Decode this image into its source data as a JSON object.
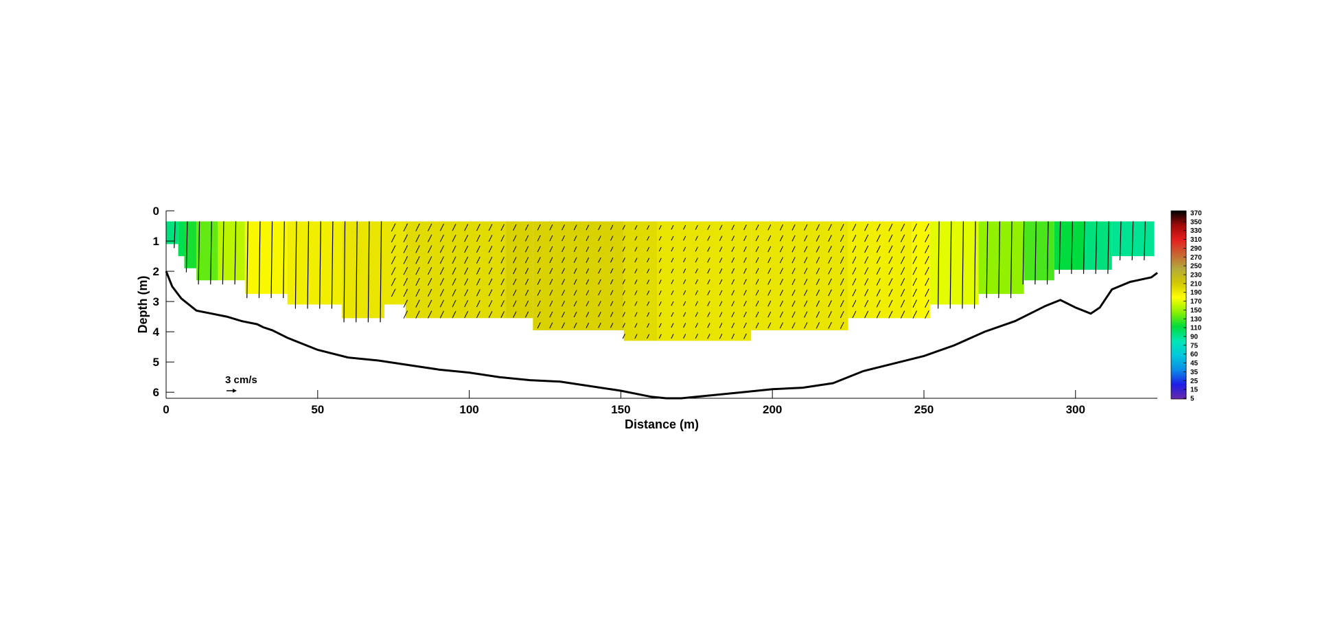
{
  "chart_data": {
    "type": "heatmap",
    "xlabel": "Distance (m)",
    "ylabel": "Depth (m)",
    "xlim": [
      0,
      327
    ],
    "ylim": [
      0,
      6.2
    ],
    "x_ticks": [
      "0",
      "50",
      "100",
      "150",
      "200",
      "250",
      "300"
    ],
    "y_ticks": [
      "0",
      "1",
      "2",
      "3",
      "4",
      "5",
      "6"
    ],
    "scale_arrow_label": "3 cm/s",
    "colorbar_ticks": [
      "370",
      "350",
      "330",
      "310",
      "290",
      "270",
      "250",
      "230",
      "210",
      "190",
      "170",
      "150",
      "130",
      "110",
      "90",
      "75",
      "60",
      "45",
      "35",
      "25",
      "15",
      "5"
    ],
    "colorbar_stops": [
      "#6a2aa8",
      "#1e1ee6",
      "#0a8ce6",
      "#00c8dc",
      "#00e6b4",
      "#00dc3c",
      "#8cf000",
      "#ffff00",
      "#d2c800",
      "#b4aa3c",
      "#c86432",
      "#e61e1e",
      "#a00a0a",
      "#000000"
    ],
    "bed_profile": {
      "x": [
        0,
        2,
        5,
        10,
        15,
        20,
        25,
        30,
        32,
        35,
        40,
        50,
        60,
        70,
        80,
        90,
        100,
        110,
        120,
        130,
        140,
        150,
        160,
        165,
        170,
        175,
        180,
        190,
        200,
        210,
        220,
        230,
        240,
        250,
        260,
        270,
        280,
        290,
        295,
        300,
        305,
        308,
        312,
        318,
        325,
        327
      ],
      "depth": [
        2.0,
        2.5,
        2.9,
        3.3,
        3.4,
        3.5,
        3.65,
        3.75,
        3.85,
        3.95,
        4.2,
        4.6,
        4.85,
        4.95,
        5.1,
        5.25,
        5.35,
        5.5,
        5.6,
        5.65,
        5.8,
        5.95,
        6.15,
        6.2,
        6.2,
        6.15,
        6.1,
        6.0,
        5.9,
        5.85,
        5.7,
        5.3,
        5.05,
        4.8,
        4.45,
        4.0,
        3.65,
        3.15,
        2.95,
        3.2,
        3.4,
        3.2,
        2.6,
        2.35,
        2.2,
        2.05
      ]
    },
    "columns": [
      {
        "x0": 0,
        "x1": 4,
        "depth": 1.1,
        "value": 130
      },
      {
        "x0": 4,
        "x1": 6,
        "depth": 1.5,
        "value": 140
      },
      {
        "x0": 6,
        "x1": 10,
        "depth": 1.9,
        "value": 150
      },
      {
        "x0": 10,
        "x1": 17,
        "depth": 2.3,
        "value": 165
      },
      {
        "x0": 17,
        "x1": 26,
        "depth": 2.3,
        "value": 185
      },
      {
        "x0": 26,
        "x1": 40,
        "depth": 2.75,
        "value": 205
      },
      {
        "x0": 40,
        "x1": 58,
        "depth": 3.1,
        "value": 210
      },
      {
        "x0": 58,
        "x1": 72,
        "depth": 3.55,
        "value": 215
      },
      {
        "x0": 72,
        "x1": 79,
        "depth": 3.1,
        "value": 215
      },
      {
        "x0": 79,
        "x1": 112,
        "depth": 3.55,
        "value": 220
      },
      {
        "x0": 112,
        "x1": 121,
        "depth": 3.55,
        "value": 225
      },
      {
        "x0": 121,
        "x1": 151,
        "depth": 3.95,
        "value": 225
      },
      {
        "x0": 151,
        "x1": 162,
        "depth": 4.3,
        "value": 220
      },
      {
        "x0": 162,
        "x1": 193,
        "depth": 4.3,
        "value": 215
      },
      {
        "x0": 193,
        "x1": 225,
        "depth": 3.95,
        "value": 215
      },
      {
        "x0": 225,
        "x1": 246,
        "depth": 3.55,
        "value": 210
      },
      {
        "x0": 246,
        "x1": 252,
        "depth": 3.55,
        "value": 205
      },
      {
        "x0": 252,
        "x1": 268,
        "depth": 3.1,
        "value": 195
      },
      {
        "x0": 268,
        "x1": 283,
        "depth": 2.75,
        "value": 175
      },
      {
        "x0": 283,
        "x1": 293,
        "depth": 2.3,
        "value": 160
      },
      {
        "x0": 293,
        "x1": 303,
        "depth": 1.95,
        "value": 145
      },
      {
        "x0": 303,
        "x1": 312,
        "depth": 1.95,
        "value": 130
      },
      {
        "x0": 312,
        "x1": 326,
        "depth": 1.5,
        "value": 125
      }
    ]
  }
}
